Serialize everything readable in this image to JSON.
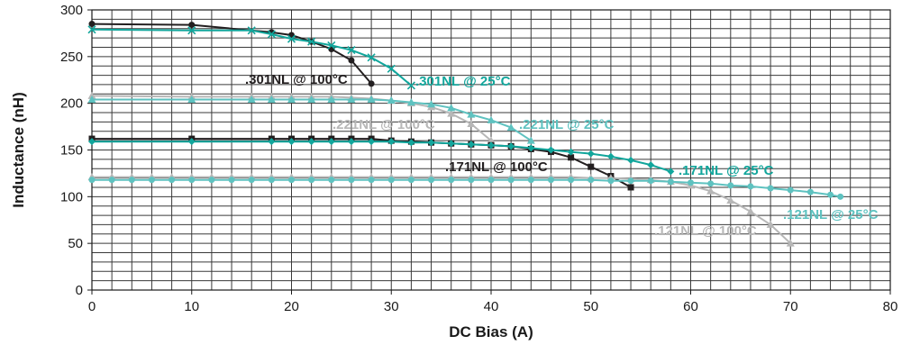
{
  "chart_data": {
    "type": "line",
    "xlabel": "DC Bias (A)",
    "ylabel": "Inductance (nH)",
    "xlim": [
      0,
      80
    ],
    "ylim": [
      0,
      300
    ],
    "xticks": [
      0,
      10,
      20,
      30,
      40,
      50,
      60,
      70,
      80
    ],
    "yticks": [
      0,
      50,
      100,
      150,
      200,
      250,
      300
    ],
    "grid": {
      "x_step": 2,
      "y_step": 10
    },
    "series": [
      {
        "name": ".301NL @ 100°C",
        "color": "#231f20",
        "marker": "circle",
        "x": [
          0,
          10,
          18,
          20,
          22,
          24,
          26,
          28
        ],
        "y": [
          285,
          284,
          276,
          273,
          266,
          258,
          246,
          221
        ]
      },
      {
        "name": ".301NL @ 25°C",
        "color": "#12a69c",
        "marker": "x",
        "x": [
          0,
          10,
          16,
          18,
          20,
          22,
          24,
          26,
          28,
          30,
          32
        ],
        "y": [
          279,
          278,
          278,
          274,
          269,
          266,
          262,
          257,
          249,
          237,
          219
        ]
      },
      {
        "name": ".221NL @ 100°C",
        "color": "#b7b7b7",
        "marker": "triangle",
        "x": [
          0,
          10,
          16,
          18,
          20,
          22,
          24,
          26,
          28,
          30,
          32,
          34,
          36,
          38,
          40
        ],
        "y": [
          208,
          207,
          207,
          207,
          207,
          207,
          207,
          206,
          205,
          203,
          200,
          196,
          189,
          178,
          160
        ]
      },
      {
        "name": ".221NL @ 25°C",
        "color": "#5ec2c0",
        "marker": "triangle",
        "x": [
          0,
          10,
          16,
          18,
          20,
          22,
          24,
          26,
          28,
          30,
          32,
          34,
          36,
          38,
          40,
          42,
          44
        ],
        "y": [
          204,
          204,
          204,
          204,
          204,
          204,
          204,
          204,
          204,
          203,
          201,
          199,
          195,
          188,
          182,
          174,
          160
        ]
      },
      {
        "name": ".171NL @ 100°C",
        "color": "#231f20",
        "marker": "square",
        "x": [
          0,
          10,
          18,
          20,
          22,
          24,
          26,
          28,
          30,
          32,
          34,
          36,
          38,
          40,
          42,
          44,
          46,
          48,
          50,
          52,
          54
        ],
        "y": [
          162,
          162,
          162,
          162,
          162,
          162,
          162,
          162,
          160,
          159,
          158,
          157,
          156,
          155,
          154,
          151,
          148,
          142,
          132,
          122,
          110
        ]
      },
      {
        "name": ".171NL @ 25°C",
        "color": "#12a69c",
        "marker": "diamond",
        "x": [
          0,
          10,
          18,
          20,
          22,
          24,
          26,
          28,
          30,
          32,
          34,
          36,
          38,
          40,
          42,
          44,
          46,
          48,
          50,
          52,
          54,
          56,
          58
        ],
        "y": [
          159,
          159,
          159,
          159,
          159,
          159,
          159,
          159,
          159,
          158,
          158,
          157,
          156,
          155,
          154,
          152,
          150,
          148,
          146,
          143,
          139,
          134,
          127
        ]
      },
      {
        "name": ".121NL @ 100°C",
        "color": "#b7b7b7",
        "marker": "triangle",
        "x": [
          0,
          2,
          4,
          6,
          8,
          10,
          12,
          14,
          16,
          18,
          20,
          22,
          24,
          26,
          28,
          30,
          32,
          34,
          36,
          38,
          40,
          42,
          44,
          46,
          48,
          50,
          52,
          54,
          56,
          58,
          60,
          62,
          64,
          66,
          68,
          70
        ],
        "y": [
          121,
          121,
          121,
          121,
          121,
          121,
          121,
          121,
          121,
          121,
          121,
          121,
          121,
          121,
          121,
          121,
          121,
          121,
          121,
          121,
          121,
          121,
          121,
          121,
          121,
          120,
          120,
          119,
          118,
          116,
          112,
          106,
          96,
          84,
          70,
          50
        ]
      },
      {
        "name": ".121NL @ 25°C",
        "color": "#5ec2c0",
        "marker": "circle",
        "x": [
          0,
          2,
          4,
          6,
          8,
          10,
          12,
          14,
          16,
          18,
          20,
          22,
          24,
          26,
          28,
          30,
          32,
          34,
          36,
          38,
          40,
          42,
          44,
          46,
          48,
          50,
          52,
          54,
          56,
          58,
          60,
          62,
          64,
          66,
          68,
          70,
          72,
          74,
          75
        ],
        "y": [
          118,
          118,
          118,
          118,
          118,
          118,
          118,
          118,
          118,
          118,
          118,
          118,
          118,
          118,
          118,
          118,
          118,
          118,
          118,
          118,
          118,
          118,
          118,
          118,
          118,
          118,
          117,
          117,
          117,
          116,
          115,
          114,
          112,
          111,
          109,
          107,
          105,
          102,
          100
        ]
      }
    ]
  }
}
